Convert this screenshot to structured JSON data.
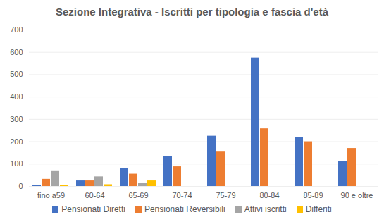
{
  "chart_data": {
    "type": "bar",
    "title": "Sezione Integrativa - Iscritti per tipologia e fascia d'età",
    "categories": [
      "fino a59",
      "60-64",
      "65-69",
      "70-74",
      "75-79",
      "80-84",
      "85-89",
      "90 e oltre"
    ],
    "series": [
      {
        "name": "Pensionati Diretti",
        "color": "#4472c4",
        "values": [
          5,
          25,
          82,
          135,
          225,
          575,
          218,
          113
        ]
      },
      {
        "name": "Pensionati Reversibili",
        "color": "#ed7d31",
        "values": [
          32,
          25,
          55,
          88,
          157,
          258,
          200,
          170
        ]
      },
      {
        "name": "Attivi iscritti",
        "color": "#a5a5a5",
        "values": [
          70,
          43,
          15,
          null,
          null,
          null,
          null,
          null
        ]
      },
      {
        "name": "Differiti",
        "color": "#ffc000",
        "values": [
          5,
          8,
          25,
          null,
          null,
          null,
          null,
          null
        ]
      }
    ],
    "ylim": [
      0,
      700
    ],
    "yticks": [
      0,
      100,
      200,
      300,
      400,
      500,
      600,
      700
    ],
    "grid": true,
    "legend": "bottom"
  }
}
